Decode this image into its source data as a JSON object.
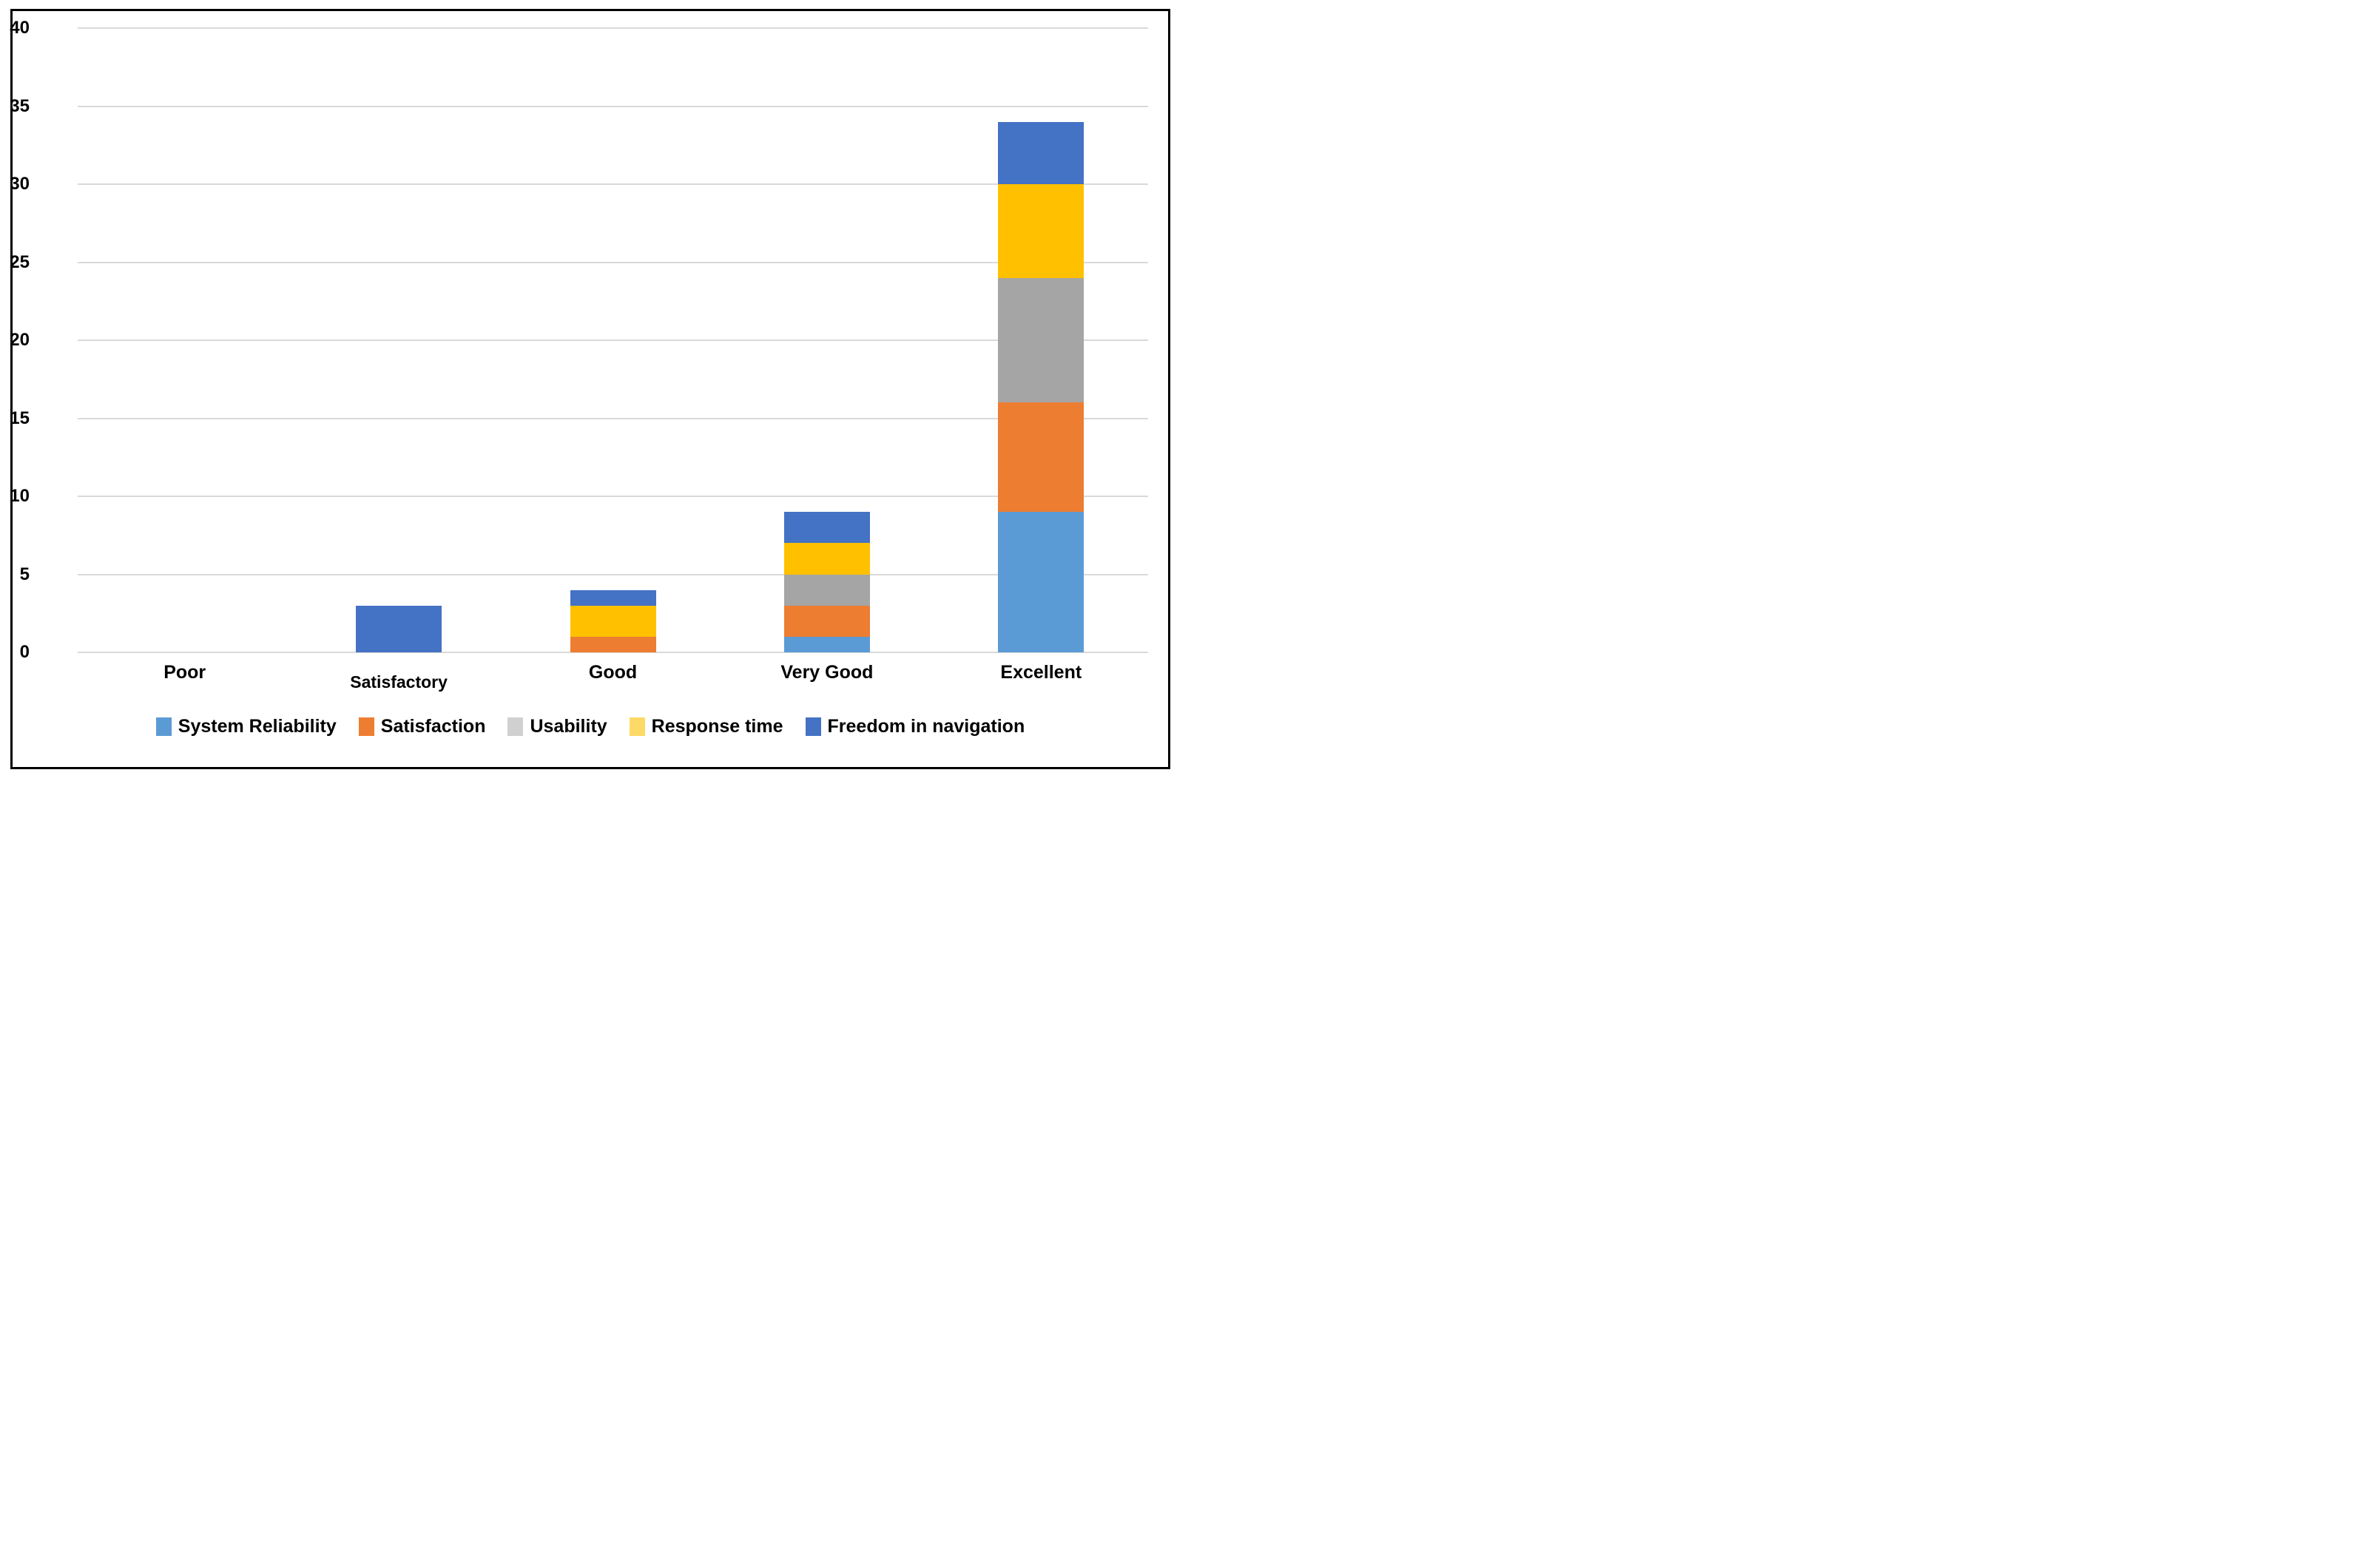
{
  "figure": {
    "background_color": "#FFFFFF",
    "border_color": "#000000"
  },
  "chart_data": {
    "type": "bar",
    "variant": "stacked-column",
    "title": "",
    "xlabel": "",
    "ylabel": "",
    "categories": [
      "Poor",
      "Satisfactory",
      "Good",
      "Very Good",
      "Excellent"
    ],
    "series": [
      {
        "name": "System Reliability",
        "color": "#5B9BD5",
        "legend_swatch_color": "#5B9BD5",
        "values": [
          0,
          0,
          0,
          1,
          9
        ]
      },
      {
        "name": "Satisfaction",
        "color": "#ED7D31",
        "legend_swatch_color": "#ED7D31",
        "values": [
          0,
          0,
          1,
          2,
          7
        ]
      },
      {
        "name": "Usability",
        "color": "#A5A5A5",
        "legend_swatch_color": "#D1D0D0",
        "values": [
          0,
          0,
          0,
          2,
          8
        ]
      },
      {
        "name": "Response time",
        "color": "#FFC000",
        "legend_swatch_color": "#FFD966",
        "values": [
          0,
          0,
          2,
          2,
          6
        ]
      },
      {
        "name": "Freedom in navigation",
        "color": "#4472C4",
        "legend_swatch_color": "#4472C4",
        "values": [
          0,
          3,
          1,
          2,
          4
        ]
      }
    ],
    "stack_totals": [
      0,
      3,
      4,
      9,
      34
    ],
    "ylim": [
      0,
      40
    ],
    "yticks": [
      0,
      5,
      10,
      15,
      20,
      25,
      30,
      35,
      40
    ],
    "grid": true,
    "gridline_color": "#D9D9D9",
    "legend_position": "bottom"
  }
}
